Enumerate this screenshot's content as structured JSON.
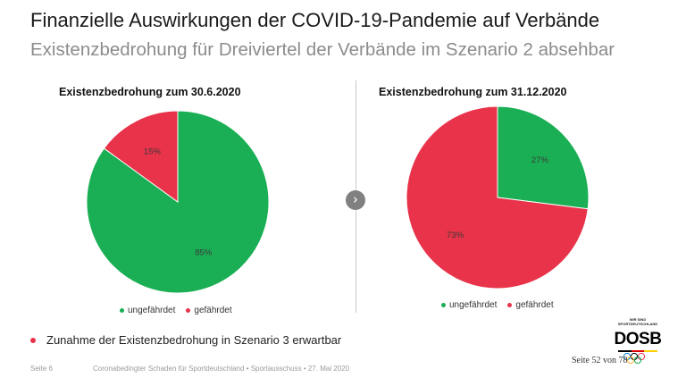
{
  "slide": {
    "title": "Finanzielle Auswirkungen der COVID-19-Pandemie auf Verbände",
    "subtitle": "Existenzbedrohung für Dreiviertel der Verbände im Szenario 2 absehbar",
    "bullet": "Zunahme der Existenzbedrohung in Szenario 3 erwartbar",
    "bullet_color": "#e8334a",
    "arrow_icon": "chevron-right-icon"
  },
  "footer": {
    "page": "Seite 6",
    "source": "Coronabedingter Schaden für Sportdeutschland • Sportausschuss • 27. Mai 2020",
    "page_count": "Seite 52 von 78"
  },
  "logo": {
    "tagline_1": "WIR SIND",
    "tagline_2": "SPORTDEUTSCHLAND",
    "wordmark": "DOSB"
  },
  "colors": {
    "green": "#1aaf54",
    "red": "#e8334a"
  },
  "chart_data": [
    {
      "type": "pie",
      "title": "Existenzbedrohung zum 30.6.2020",
      "labels": [
        "ungefährdet",
        "gefährdet"
      ],
      "values": [
        85,
        15
      ],
      "data_labels": [
        "85%",
        "15%"
      ],
      "colors": [
        "#1aaf54",
        "#e8334a"
      ],
      "legend": "bottom"
    },
    {
      "type": "pie",
      "title": "Existenzbedrohung zum 31.12.2020",
      "labels": [
        "ungefährdet",
        "gefährdet"
      ],
      "values": [
        27,
        73
      ],
      "data_labels": [
        "27%",
        "73%"
      ],
      "colors": [
        "#1aaf54",
        "#e8334a"
      ],
      "legend": "bottom"
    }
  ]
}
